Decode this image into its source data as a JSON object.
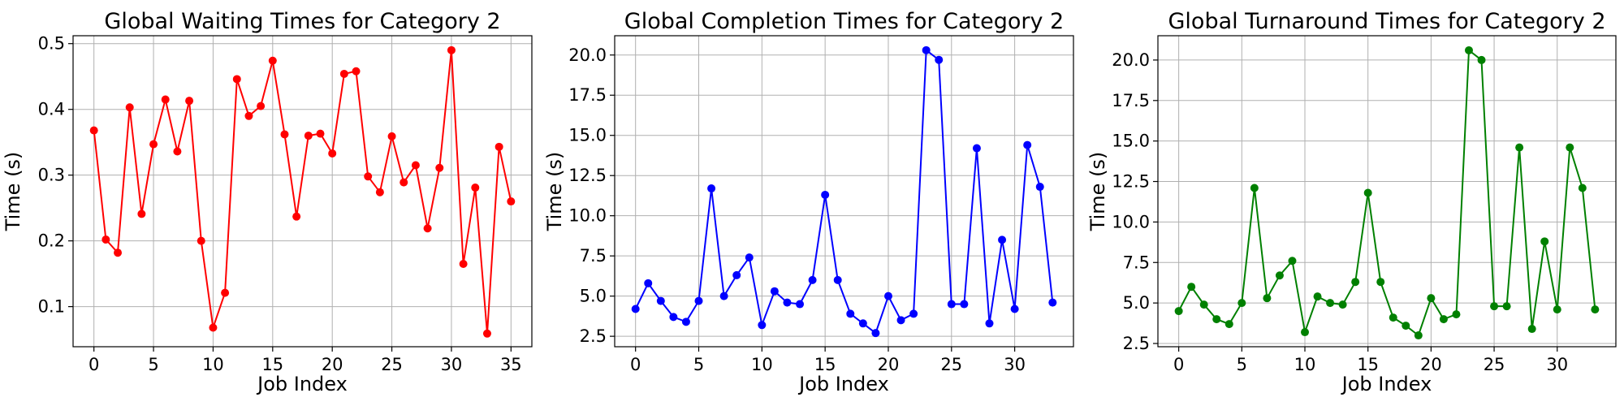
{
  "chart_data": [
    {
      "type": "line",
      "title": "Global Waiting Times for Category 2",
      "xlabel": "Job Index",
      "ylabel": "Time (s)",
      "xlim": [
        -1.75,
        36.75
      ],
      "ylim": [
        0.039,
        0.512
      ],
      "xticks": [
        0,
        5,
        10,
        15,
        20,
        25,
        30,
        35
      ],
      "yticks": [
        0.1,
        0.2,
        0.3,
        0.4,
        0.5
      ],
      "ytick_labels": [
        "0.1",
        "0.2",
        "0.3",
        "0.4",
        "0.5"
      ],
      "grid": true,
      "color": "#ff0000",
      "x": [
        0,
        1,
        2,
        3,
        4,
        5,
        6,
        7,
        8,
        9,
        10,
        11,
        12,
        13,
        14,
        15,
        16,
        17,
        18,
        19,
        20,
        21,
        22,
        23,
        24,
        25,
        26,
        27,
        28,
        29,
        30,
        31,
        32,
        33,
        34,
        35
      ],
      "values": [
        0.368,
        0.202,
        0.182,
        0.403,
        0.241,
        0.347,
        0.415,
        0.336,
        0.413,
        0.2,
        0.068,
        0.121,
        0.446,
        0.39,
        0.405,
        0.474,
        0.362,
        0.237,
        0.36,
        0.363,
        0.333,
        0.454,
        0.458,
        0.298,
        0.274,
        0.359,
        0.289,
        0.315,
        0.219,
        0.311,
        0.49,
        0.165,
        0.281,
        0.059,
        0.343,
        0.26
      ]
    },
    {
      "type": "line",
      "title": "Global Completion Times for Category 2",
      "xlabel": "Job Index",
      "ylabel": "Time (s)",
      "xlim": [
        -1.65,
        34.65
      ],
      "ylim": [
        1.85,
        21.2
      ],
      "xticks": [
        0,
        5,
        10,
        15,
        20,
        25,
        30
      ],
      "yticks": [
        2.5,
        5.0,
        7.5,
        10.0,
        12.5,
        15.0,
        17.5,
        20.0
      ],
      "ytick_labels": [
        "2.5",
        "5.0",
        "7.5",
        "10.0",
        "12.5",
        "15.0",
        "17.5",
        "20.0"
      ],
      "grid": true,
      "color": "#0000ff",
      "x": [
        0,
        1,
        2,
        3,
        4,
        5,
        6,
        7,
        8,
        9,
        10,
        11,
        12,
        13,
        14,
        15,
        16,
        17,
        18,
        19,
        20,
        21,
        22,
        23,
        24,
        25,
        26,
        27,
        28,
        29,
        30,
        31,
        32,
        33
      ],
      "values": [
        4.2,
        5.8,
        4.7,
        3.7,
        3.4,
        4.7,
        11.7,
        5.0,
        6.3,
        7.4,
        3.2,
        5.3,
        4.6,
        4.5,
        6.0,
        11.3,
        6.0,
        3.9,
        3.3,
        2.7,
        5.0,
        3.5,
        3.9,
        20.3,
        19.7,
        4.5,
        4.5,
        14.2,
        3.3,
        8.5,
        4.2,
        14.4,
        11.8,
        4.6
      ]
    },
    {
      "type": "line",
      "title": "Global Turnaround Times for Category 2",
      "xlabel": "Job Index",
      "ylabel": "Time (s)",
      "xlim": [
        -1.65,
        34.65
      ],
      "ylim": [
        2.3,
        21.5
      ],
      "xticks": [
        0,
        5,
        10,
        15,
        20,
        25,
        30
      ],
      "yticks": [
        2.5,
        5.0,
        7.5,
        10.0,
        12.5,
        15.0,
        17.5,
        20.0
      ],
      "ytick_labels": [
        "2.5",
        "5.0",
        "7.5",
        "10.0",
        "12.5",
        "15.0",
        "17.5",
        "20.0"
      ],
      "grid": true,
      "color": "#008000",
      "x": [
        0,
        1,
        2,
        3,
        4,
        5,
        6,
        7,
        8,
        9,
        10,
        11,
        12,
        13,
        14,
        15,
        16,
        17,
        18,
        19,
        20,
        21,
        22,
        23,
        24,
        25,
        26,
        27,
        28,
        29,
        30,
        31,
        32,
        33
      ],
      "values": [
        4.5,
        6.0,
        4.9,
        4.0,
        3.7,
        5.0,
        12.1,
        5.3,
        6.7,
        7.6,
        3.2,
        5.4,
        5.0,
        4.9,
        6.3,
        11.8,
        6.3,
        4.1,
        3.6,
        3.0,
        5.3,
        4.0,
        4.3,
        20.6,
        20.0,
        4.8,
        4.8,
        14.6,
        3.4,
        8.8,
        4.6,
        14.6,
        12.1,
        4.6
      ]
    }
  ]
}
